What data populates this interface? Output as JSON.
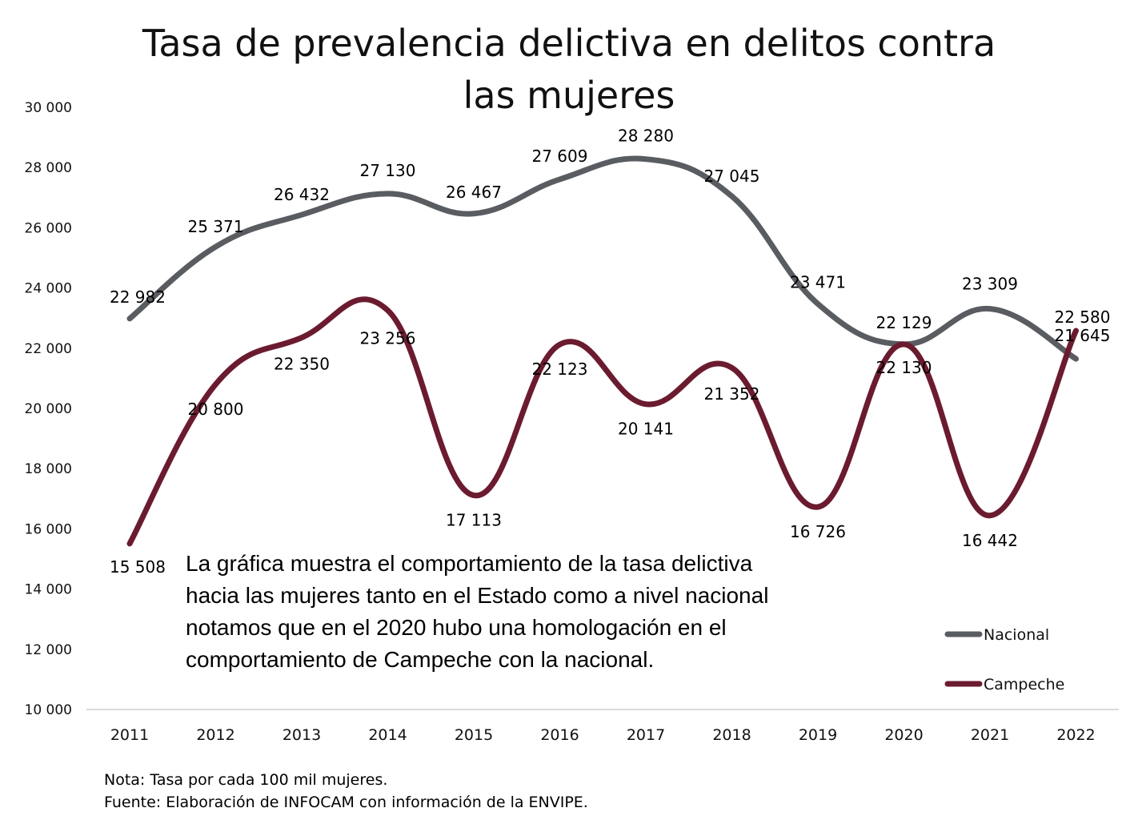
{
  "chart_data": {
    "type": "line",
    "title_lines": [
      "Tasa de prevalencia delictiva en delitos contra",
      "las mujeres"
    ],
    "categories": [
      "2011",
      "2012",
      "2013",
      "2014",
      "2015",
      "2016",
      "2017",
      "2018",
      "2019",
      "2020",
      "2021",
      "2022"
    ],
    "series": [
      {
        "name": "Nacional",
        "color": "#595c60",
        "values": [
          22982,
          25371,
          26432,
          27130,
          26467,
          27609,
          28280,
          27045,
          23471,
          22129,
          23309,
          21645
        ],
        "labels": [
          "22 982",
          "25 371",
          "26 432",
          "27 130",
          "26 467",
          "27 609",
          "28 280",
          "27 045",
          "23 471",
          "22 129",
          "23 309",
          "21 645"
        ]
      },
      {
        "name": "Campeche",
        "color": "#6b1b2f",
        "values": [
          15508,
          20800,
          22350,
          23256,
          17113,
          22123,
          20141,
          21352,
          16726,
          22130,
          16442,
          22580
        ],
        "labels": [
          "15 508",
          "20 800",
          "22 350",
          "23 256",
          "17 113",
          "22 123",
          "20 141",
          "21 352",
          "16 726",
          "22 130",
          "16 442",
          "22 580"
        ]
      }
    ],
    "ylim": [
      10000,
      30000
    ],
    "yticks": [
      10000,
      12000,
      14000,
      16000,
      18000,
      20000,
      22000,
      24000,
      26000,
      28000,
      30000
    ],
    "ytick_labels": [
      "10 000",
      "12 000",
      "14 000",
      "16 000",
      "18 000",
      "20 000",
      "22 000",
      "24 000",
      "26 000",
      "28 000",
      "30 000"
    ],
    "grid": false,
    "legend_position": "bottom-right",
    "xlabel": "",
    "ylabel": ""
  },
  "annotation_lines": [
    "La gráfica muestra el comportamiento de la tasa delictiva",
    "hacia las mujeres tanto en el Estado como a nivel nacional",
    "notamos que en el 2020 hubo una homologación en el",
    "comportamiento de Campeche con la nacional."
  ],
  "notes": {
    "nota": "Nota: Tasa por cada 100 mil mujeres.",
    "fuente": "Fuente: Elaboración de INFOCAM con información de la ENVIPE."
  }
}
